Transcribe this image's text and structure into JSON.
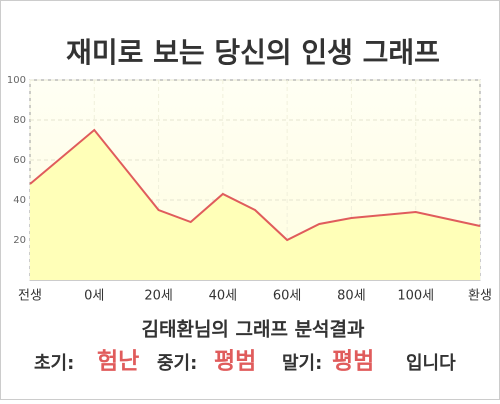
{
  "chart_data": {
    "type": "line",
    "title": "재미로 보는 당신의 인생 그래프",
    "x": [
      -20,
      0,
      20,
      30,
      40,
      50,
      60,
      70,
      80,
      100,
      120
    ],
    "series": [
      {
        "color": "#e05c5c",
        "values": [
          48,
          75,
          35,
          29,
          43,
          35,
          20,
          28,
          31,
          34,
          27
        ]
      }
    ],
    "area_color": "#ffffb8",
    "xlim": [
      -20,
      120
    ],
    "xticks": [
      {
        "value": -20,
        "label": "전생"
      },
      {
        "value": 0,
        "label": "0세"
      },
      {
        "value": 20,
        "label": "20세"
      },
      {
        "value": 40,
        "label": "40세"
      },
      {
        "value": 60,
        "label": "60세"
      },
      {
        "value": 80,
        "label": "80세"
      },
      {
        "value": 100,
        "label": "100세"
      },
      {
        "value": 120,
        "label": "환생"
      }
    ],
    "ylim": [
      0,
      100
    ],
    "yticks": [
      20,
      40,
      60,
      80,
      100
    ],
    "grid": true
  },
  "analysis": {
    "title": "김태환님의 그래프 분석결과",
    "items": [
      {
        "label": "초기:",
        "value": "험난"
      },
      {
        "label": "중기:",
        "value": "평범"
      },
      {
        "label": "말기:",
        "value": "평범"
      }
    ],
    "suffix": "입니다"
  }
}
